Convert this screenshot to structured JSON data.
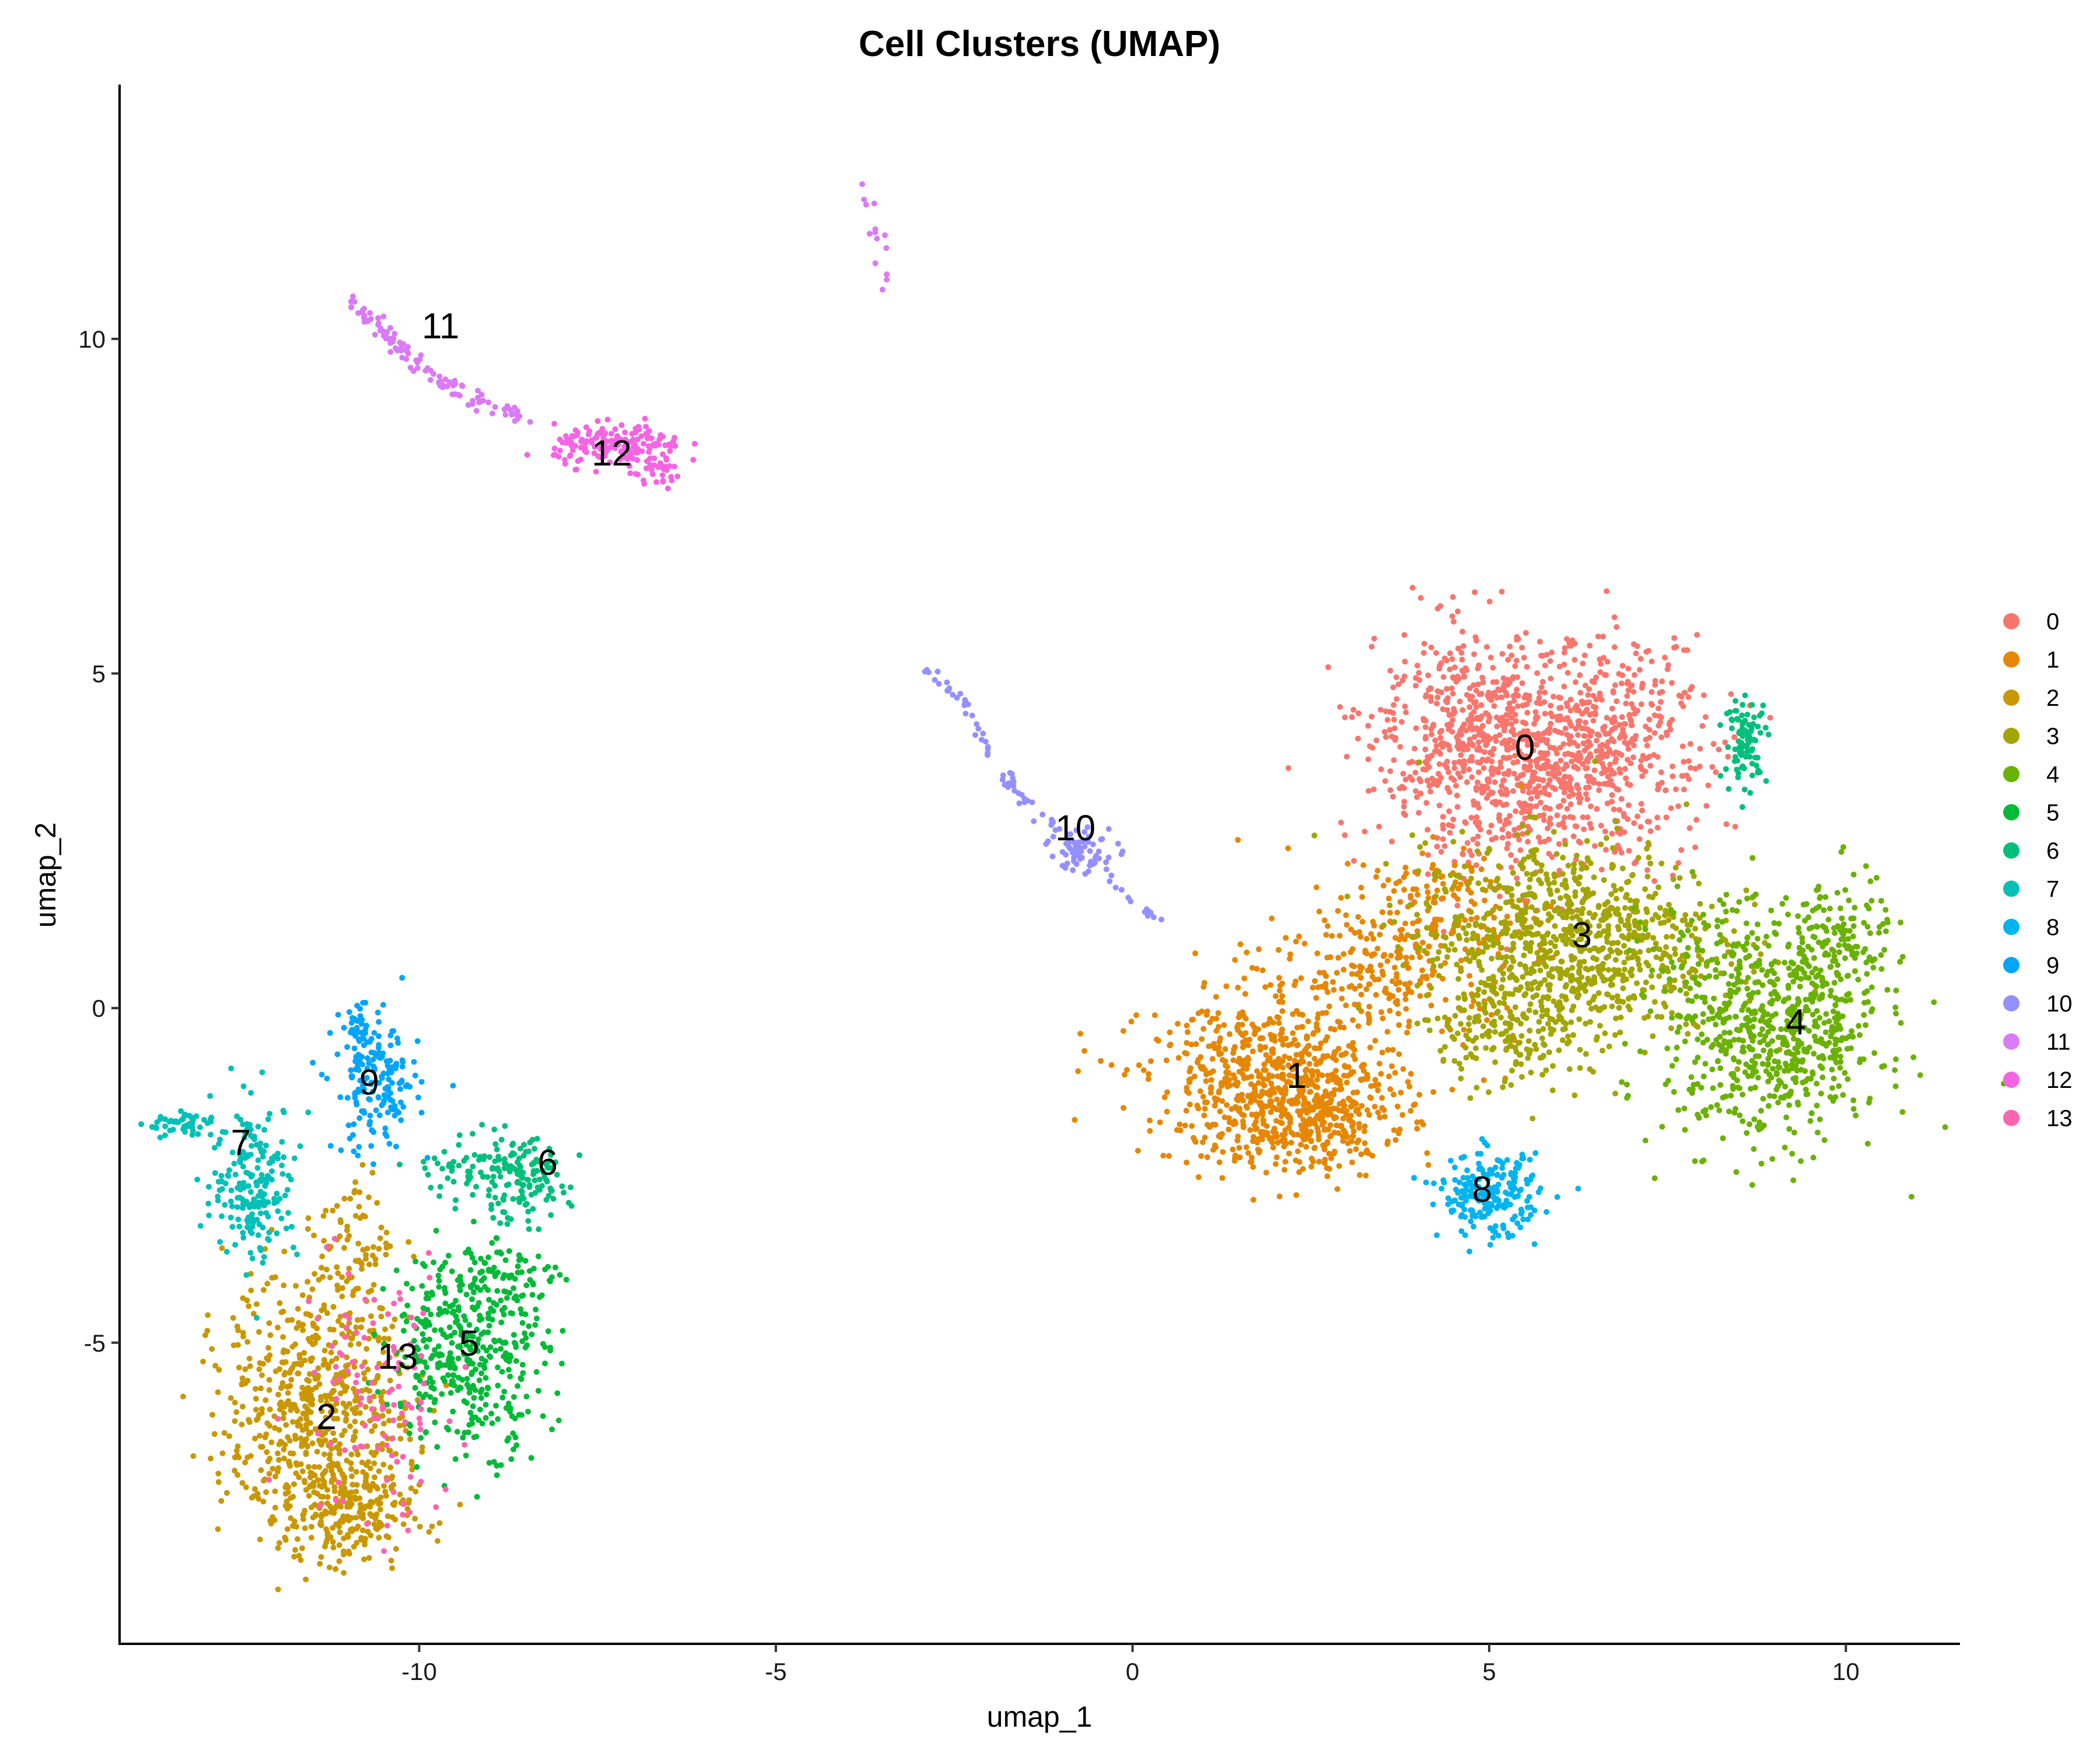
{
  "chart_data": {
    "type": "scatter",
    "title": "Cell Clusters (UMAP)",
    "xlabel": "umap_1",
    "ylabel": "umap_2",
    "xlim": [
      -14.2,
      11.6
    ],
    "ylim": [
      -9.5,
      13.8
    ],
    "xticks": [
      -10,
      -5,
      0,
      5,
      10
    ],
    "yticks": [
      -5,
      0,
      5,
      10
    ],
    "xtick_labels": [
      "-10",
      "-5",
      "0",
      "5",
      "10"
    ],
    "ytick_labels": [
      "-5",
      "0",
      "5",
      "10"
    ],
    "legend_position": "right",
    "grid": false,
    "clusters": [
      {
        "name": "0",
        "color": "#F8766D",
        "label_x": 5.5,
        "label_y": 3.9,
        "blobs": [
          {
            "cx": 5.6,
            "cy": 3.7,
            "sx": 1.05,
            "sy": 0.85,
            "n": 900
          },
          {
            "cx": 4.6,
            "cy": 4.3,
            "sx": 0.6,
            "sy": 0.7,
            "n": 180
          },
          {
            "cx": 6.8,
            "cy": 4.1,
            "sx": 0.6,
            "sy": 0.7,
            "n": 180
          }
        ]
      },
      {
        "name": "1",
        "color": "#E58700",
        "label_x": 2.3,
        "label_y": -1.0,
        "blobs": [
          {
            "cx": 2.0,
            "cy": -1.1,
            "sx": 0.9,
            "sy": 0.6,
            "n": 650
          },
          {
            "cx": 2.5,
            "cy": -1.7,
            "sx": 0.6,
            "sy": 0.4,
            "n": 220
          },
          {
            "cx": 3.6,
            "cy": 0.6,
            "sx": 0.9,
            "sy": 0.6,
            "n": 280
          },
          {
            "cx": 4.3,
            "cy": 1.6,
            "sx": 0.6,
            "sy": 0.4,
            "n": 100
          }
        ]
      },
      {
        "name": "2",
        "color": "#C99800",
        "label_x": -11.3,
        "label_y": -6.1,
        "blobs": [
          {
            "cx": -11.4,
            "cy": -6.0,
            "sx": 0.65,
            "sy": 1.05,
            "n": 700
          },
          {
            "cx": -11.0,
            "cy": -7.6,
            "sx": 0.45,
            "sy": 0.35,
            "n": 160
          },
          {
            "cx": -10.9,
            "cy": -3.4,
            "sx": 0.25,
            "sy": 0.5,
            "n": 60
          }
        ]
      },
      {
        "name": "3",
        "color": "#A3A500",
        "label_x": 6.3,
        "label_y": 1.1,
        "blobs": [
          {
            "cx": 6.1,
            "cy": 1.0,
            "sx": 1.05,
            "sy": 0.75,
            "n": 900
          },
          {
            "cx": 5.3,
            "cy": -0.4,
            "sx": 0.5,
            "sy": 0.4,
            "n": 140
          }
        ]
      },
      {
        "name": "4",
        "color": "#6BB100",
        "label_x": 9.3,
        "label_y": -0.2,
        "blobs": [
          {
            "cx": 9.0,
            "cy": -0.4,
            "sx": 0.75,
            "sy": 0.8,
            "n": 650
          },
          {
            "cx": 9.9,
            "cy": 0.9,
            "sx": 0.35,
            "sy": 0.55,
            "n": 140
          },
          {
            "cx": 8.1,
            "cy": 0.8,
            "sx": 0.5,
            "sy": 0.5,
            "n": 60
          }
        ]
      },
      {
        "name": "5",
        "color": "#00BA38",
        "label_x": -9.3,
        "label_y": -5.0,
        "blobs": [
          {
            "cx": -9.3,
            "cy": -5.1,
            "sx": 0.55,
            "sy": 0.75,
            "n": 400
          },
          {
            "cx": -8.8,
            "cy": -4.1,
            "sx": 0.35,
            "sy": 0.3,
            "n": 60
          }
        ]
      },
      {
        "name": "6",
        "color": "#00BF7D",
        "label_x": -8.2,
        "label_y": -2.3,
        "blobs": [
          {
            "cx": -8.6,
            "cy": -2.6,
            "sx": 0.35,
            "sy": 0.3,
            "n": 130
          },
          {
            "cx": -9.3,
            "cy": -2.4,
            "sx": 0.45,
            "sy": 0.25,
            "n": 60
          },
          {
            "cx": 8.6,
            "cy": 4.0,
            "sx": 0.15,
            "sy": 0.3,
            "n": 90
          }
        ]
      },
      {
        "name": "7",
        "color": "#00C0B8",
        "label_x": -12.5,
        "label_y": -2.0,
        "blobs": [
          {
            "cx": -12.3,
            "cy": -2.6,
            "sx": 0.3,
            "sy": 0.6,
            "n": 200
          },
          {
            "cx": -13.3,
            "cy": -1.75,
            "sx": 0.25,
            "sy": 0.1,
            "n": 50
          }
        ]
      },
      {
        "name": "8",
        "color": "#00B4EF",
        "label_x": 4.9,
        "label_y": -2.7,
        "blobs": [
          {
            "cx": 5.0,
            "cy": -2.8,
            "sx": 0.35,
            "sy": 0.3,
            "n": 220
          }
        ]
      },
      {
        "name": "9",
        "color": "#00A5FF",
        "label_x": -10.7,
        "label_y": -1.1,
        "blobs": [
          {
            "cx": -10.6,
            "cy": -1.2,
            "sx": 0.3,
            "sy": 0.5,
            "n": 160
          },
          {
            "cx": -10.8,
            "cy": -0.4,
            "sx": 0.15,
            "sy": 0.2,
            "n": 40
          }
        ]
      },
      {
        "name": "10",
        "color": "#9590FF",
        "label_x": -0.8,
        "label_y": 2.7,
        "blobs": [
          {
            "cx": -0.7,
            "cy": 2.4,
            "sx": 0.25,
            "sy": 0.18,
            "n": 50
          }
        ],
        "line": [
          [
            -2.9,
            5.1
          ],
          [
            -2.4,
            4.6
          ],
          [
            -2.0,
            3.8
          ],
          [
            -1.6,
            3.2
          ],
          [
            -0.9,
            2.5
          ],
          [
            -0.3,
            1.9
          ],
          [
            0.4,
            1.3
          ]
        ],
        "line_n": 90
      },
      {
        "name": "11",
        "color": "#D97AF8",
        "label_x": -9.7,
        "label_y": 10.2,
        "line": [
          [
            -11.0,
            10.6
          ],
          [
            -10.5,
            10.1
          ],
          [
            -9.9,
            9.5
          ],
          [
            -9.2,
            9.1
          ],
          [
            -8.5,
            8.8
          ]
        ],
        "line_n": 110,
        "extra_lines": [
          {
            "points": [
              [
                -3.9,
                12.7
              ],
              [
                -3.7,
                12.0
              ],
              [
                -3.4,
                10.7
              ]
            ],
            "n": 14
          }
        ]
      },
      {
        "name": "12",
        "color": "#F564E3",
        "label_x": -7.3,
        "label_y": 8.3,
        "blobs": [
          {
            "cx": -7.2,
            "cy": 8.4,
            "sx": 0.45,
            "sy": 0.15,
            "n": 170
          },
          {
            "cx": -6.7,
            "cy": 8.0,
            "sx": 0.2,
            "sy": 0.12,
            "n": 30
          }
        ]
      },
      {
        "name": "13",
        "color": "#FF64B0",
        "label_x": -10.3,
        "label_y": -5.2,
        "blobs": [
          {
            "cx": -10.6,
            "cy": -5.8,
            "sx": 0.55,
            "sy": 1.1,
            "n": 110
          }
        ]
      }
    ]
  }
}
